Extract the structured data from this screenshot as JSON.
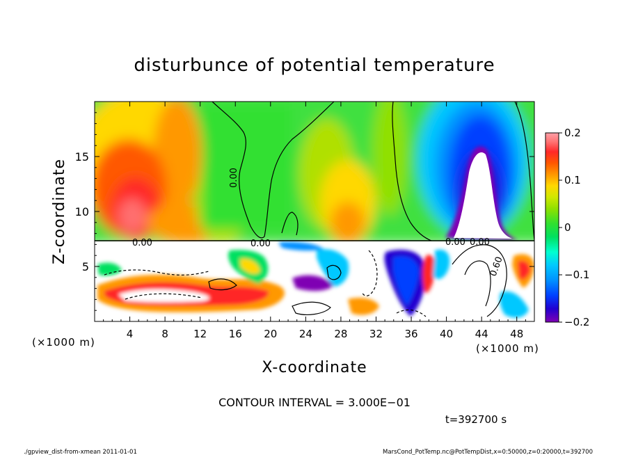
{
  "chart_data": {
    "type": "heatmap",
    "title": "disturbunce of potential temperature",
    "xlabel": "X-coordinate",
    "ylabel": "Z-coordinate",
    "x_units": "(×1000 m)",
    "y_units": "(×1000 m)",
    "xlim": [
      0,
      50
    ],
    "ylim": [
      0,
      20
    ],
    "x_ticks": [
      4,
      8,
      12,
      16,
      20,
      24,
      28,
      32,
      36,
      40,
      44,
      48
    ],
    "y_ticks": [
      5,
      10,
      15
    ],
    "colorbar": {
      "ticks": [
        "0.2",
        "0.1",
        "0",
        "−0.1",
        "−0.2"
      ],
      "values": [
        0.2,
        0.1,
        0,
        -0.1,
        -0.2
      ],
      "range": [
        -0.2,
        0.2
      ]
    },
    "contour_labels": [
      "0.00",
      "0.00",
      "0.00",
      "0.00",
      "0.00",
      "0.60"
    ],
    "contour_interval_text": "CONTOUR INTERVAL = 3.000E−01",
    "time_text": "t=392700 s",
    "upper_field": {
      "z_range": [
        7.5,
        20
      ],
      "features": [
        {
          "x": 4.5,
          "z": 11,
          "value": 0.2,
          "kind": "warm maximum"
        },
        {
          "x": 9,
          "z": 14,
          "value": 0.12,
          "kind": "warm"
        },
        {
          "x": 20,
          "z": 16,
          "value": 0.0,
          "kind": "neutral"
        },
        {
          "x": 28,
          "z": 11,
          "value": 0.1,
          "kind": "warm"
        },
        {
          "x": 42,
          "z": 17,
          "value": -0.14,
          "kind": "cool"
        },
        {
          "x": 44,
          "z": 12,
          "value": -0.25,
          "kind": "cold minimum"
        }
      ]
    }
  },
  "footer": {
    "left": "./gpview_dist-from-xmean  2011-01-01",
    "right": "MarsCond_PotTemp.nc@PotTempDist,x=0:50000,z=0:20000,t=392700"
  },
  "colors": {
    "colormap": [
      "#7f00b3",
      "#2200d0",
      "#0040ff",
      "#0090ff",
      "#00c8ff",
      "#00ffd0",
      "#00e060",
      "#30e030",
      "#90e000",
      "#d0e800",
      "#ffd800",
      "#ff9800",
      "#ff5800",
      "#ff2828",
      "#ff7070",
      "#ffa0a8"
    ]
  }
}
